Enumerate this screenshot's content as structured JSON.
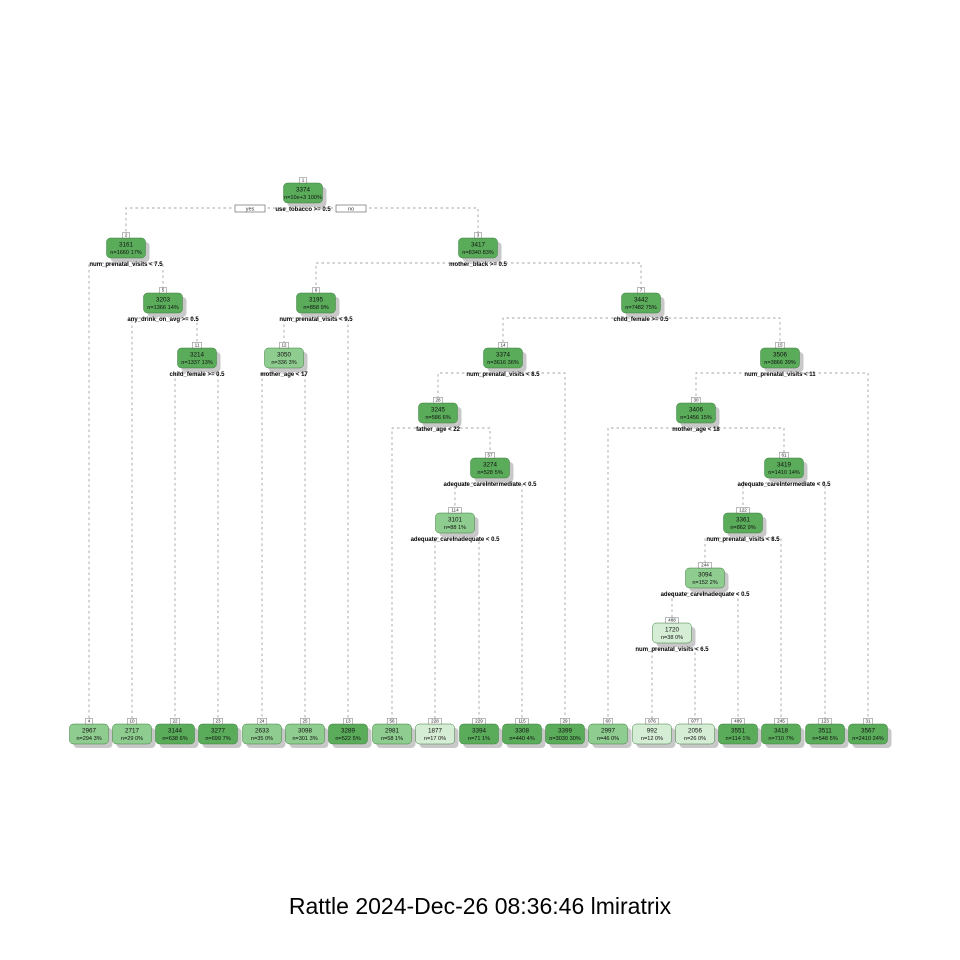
{
  "caption": "Rattle 2024-Dec-26 08:36:46 lmiratrix",
  "colors": {
    "dark_green": "#5aac5a",
    "mid_green": "#8fcc8f",
    "light_green": "#d5ecd5",
    "border": "#3f7f3f",
    "shadow": "#c8c8c8",
    "edge": "#888888"
  },
  "root_branch_labels": {
    "yes": "yes",
    "no": "no"
  },
  "nodes": [
    {
      "id": "1",
      "value": "3374",
      "stats": "n=10e+3  100%",
      "split": "use_tobacco >= 0.5",
      "shade": "dark"
    },
    {
      "id": "2",
      "value": "3161",
      "stats": "n=1660  17%",
      "split": "num_prenatal_visits < 7.5",
      "shade": "dark"
    },
    {
      "id": "3",
      "value": "3417",
      "stats": "n=8340  83%",
      "split": "mother_black >= 0.5",
      "shade": "dark"
    },
    {
      "id": "5",
      "value": "3203",
      "stats": "n=1366  14%",
      "split": "any_drink_on_avg >= 0.5",
      "shade": "dark"
    },
    {
      "id": "6",
      "value": "3195",
      "stats": "n=858  9%",
      "split": "num_prenatal_visits < 9.5",
      "shade": "dark"
    },
    {
      "id": "7",
      "value": "3442",
      "stats": "n=7482  75%",
      "split": "child_female >= 0.5",
      "shade": "dark"
    },
    {
      "id": "11",
      "value": "3214",
      "stats": "n=1337  13%",
      "split": "child_female >= 0.5",
      "shade": "dark"
    },
    {
      "id": "12",
      "value": "3050",
      "stats": "n=336  3%",
      "split": "mother_age < 17",
      "shade": "mid"
    },
    {
      "id": "14",
      "value": "3374",
      "stats": "n=3616  36%",
      "split": "num_prenatal_visits < 8.5",
      "shade": "dark"
    },
    {
      "id": "15",
      "value": "3506",
      "stats": "n=3866  39%",
      "split": "num_prenatal_visits < 11",
      "shade": "dark"
    },
    {
      "id": "28",
      "value": "3245",
      "stats": "n=586  6%",
      "split": "father_age < 22",
      "shade": "dark"
    },
    {
      "id": "30",
      "value": "3406",
      "stats": "n=1456  15%",
      "split": "mother_age < 18",
      "shade": "dark"
    },
    {
      "id": "57",
      "value": "3274",
      "stats": "n=528  5%",
      "split": "adequate_careIntermediate < 0.5",
      "shade": "dark"
    },
    {
      "id": "61",
      "value": "3419",
      "stats": "n=1410  14%",
      "split": "adequate_careIntermediate < 0.5",
      "shade": "dark"
    },
    {
      "id": "114",
      "value": "3101",
      "stats": "n=88  1%",
      "split": "adequate_careInadequate < 0.5",
      "shade": "mid"
    },
    {
      "id": "122",
      "value": "3361",
      "stats": "n=862  9%",
      "split": "num_prenatal_visits < 8.5",
      "shade": "dark"
    },
    {
      "id": "244",
      "value": "3094",
      "stats": "n=152  2%",
      "split": "adequate_careInadequate < 0.5",
      "shade": "mid"
    },
    {
      "id": "488",
      "value": "1720",
      "stats": "n=38  0%",
      "split": "num_prenatal_visits < 6.5",
      "shade": "light"
    },
    {
      "id": "4",
      "value": "2967",
      "stats": "n=294  3%",
      "shade": "mid"
    },
    {
      "id": "10",
      "value": "2717",
      "stats": "n=29  0%",
      "shade": "mid"
    },
    {
      "id": "22",
      "value": "3144",
      "stats": "n=638  6%",
      "shade": "dark"
    },
    {
      "id": "23",
      "value": "3277",
      "stats": "n=699  7%",
      "shade": "dark"
    },
    {
      "id": "24",
      "value": "2633",
      "stats": "n=35  0%",
      "shade": "mid"
    },
    {
      "id": "25",
      "value": "3098",
      "stats": "n=301  3%",
      "shade": "mid"
    },
    {
      "id": "13",
      "value": "3289",
      "stats": "n=522  5%",
      "shade": "dark"
    },
    {
      "id": "56",
      "value": "2981",
      "stats": "n=58  1%",
      "shade": "mid"
    },
    {
      "id": "228",
      "value": "1877",
      "stats": "n=17  0%",
      "shade": "light"
    },
    {
      "id": "229",
      "value": "3394",
      "stats": "n=71  1%",
      "shade": "dark"
    },
    {
      "id": "115",
      "value": "3308",
      "stats": "n=440  4%",
      "shade": "dark"
    },
    {
      "id": "29",
      "value": "3399",
      "stats": "n=3030  30%",
      "shade": "dark"
    },
    {
      "id": "60",
      "value": "2997",
      "stats": "n=46  0%",
      "shade": "mid"
    },
    {
      "id": "976",
      "value": "992",
      "stats": "n=12  0%",
      "shade": "light"
    },
    {
      "id": "977",
      "value": "2056",
      "stats": "n=26  0%",
      "shade": "light"
    },
    {
      "id": "489",
      "value": "3551",
      "stats": "n=114  1%",
      "shade": "dark"
    },
    {
      "id": "245",
      "value": "3418",
      "stats": "n=710  7%",
      "shade": "dark"
    },
    {
      "id": "123",
      "value": "3511",
      "stats": "n=548  5%",
      "shade": "dark"
    },
    {
      "id": "31",
      "value": "3567",
      "stats": "n=2410  24%",
      "shade": "dark"
    }
  ],
  "edges": [
    [
      "1",
      "2"
    ],
    [
      "1",
      "3"
    ],
    [
      "2",
      "4"
    ],
    [
      "2",
      "5"
    ],
    [
      "5",
      "10"
    ],
    [
      "5",
      "11"
    ],
    [
      "11",
      "22"
    ],
    [
      "11",
      "23"
    ],
    [
      "3",
      "6"
    ],
    [
      "3",
      "7"
    ],
    [
      "6",
      "12"
    ],
    [
      "6",
      "13"
    ],
    [
      "12",
      "24"
    ],
    [
      "12",
      "25"
    ],
    [
      "7",
      "14"
    ],
    [
      "7",
      "15"
    ],
    [
      "14",
      "28"
    ],
    [
      "14",
      "29"
    ],
    [
      "28",
      "56"
    ],
    [
      "28",
      "57"
    ],
    [
      "57",
      "114"
    ],
    [
      "57",
      "115"
    ],
    [
      "114",
      "228"
    ],
    [
      "114",
      "229"
    ],
    [
      "15",
      "30"
    ],
    [
      "15",
      "31"
    ],
    [
      "30",
      "60"
    ],
    [
      "30",
      "61"
    ],
    [
      "61",
      "122"
    ],
    [
      "61",
      "123"
    ],
    [
      "122",
      "244"
    ],
    [
      "122",
      "245"
    ],
    [
      "244",
      "488"
    ],
    [
      "244",
      "489"
    ],
    [
      "488",
      "976"
    ],
    [
      "488",
      "977"
    ]
  ]
}
